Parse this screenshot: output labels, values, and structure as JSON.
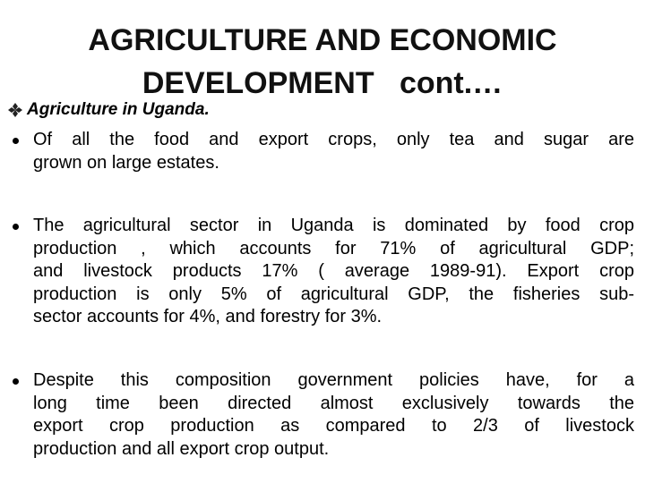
{
  "title": {
    "lines": [
      "AGRICULTURE AND ECONOMIC",
      "DEVELOPMENT   cont.…"
    ]
  },
  "subheading": "Agriculture in Uganda.",
  "bullets": [
    {
      "lines": [
        "Of all the food and export crops, only tea and sugar are",
        "grown on large estates."
      ]
    },
    {
      "lines": [
        "The agricultural sector in Uganda is dominated by food crop",
        "production , which accounts for 71% of agricultural GDP;",
        "and livestock products 17% ( average 1989-91). Export crop",
        "production is only 5% of agricultural GDP, the fisheries sub-",
        "sector accounts for 4%, and forestry for 3%."
      ]
    },
    {
      "lines": [
        "Despite this composition government policies have, for a",
        "long time been directed almost exclusively towards the",
        "export crop production as compared to 2/3 of livestock",
        "production and all export crop output."
      ]
    }
  ]
}
